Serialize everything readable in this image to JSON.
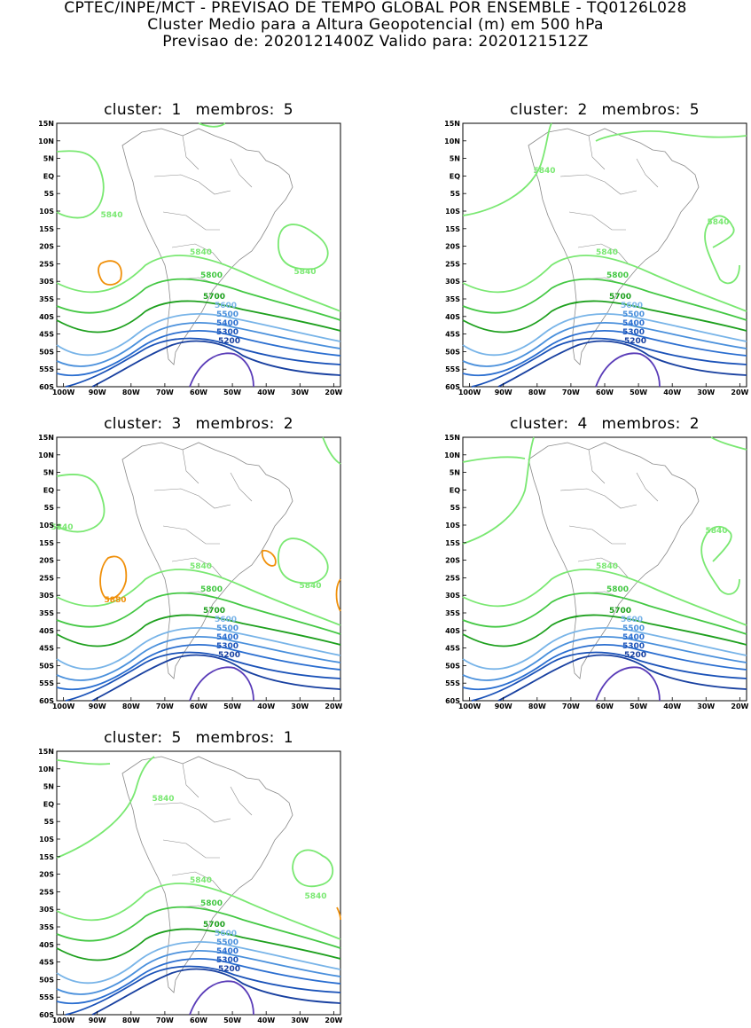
{
  "header": {
    "line1": "CPTEC/INPE/MCT - PREVISAO DE TEMPO GLOBAL POR ENSEMBLE - TQ0126L028",
    "line2": "Cluster Medio para a Altura Geopotencial (m) em 500 hPa",
    "line3": "Previsao de: 2020121400Z    Valido para: 2020121512Z"
  },
  "axes": {
    "lat_labels": [
      "15N",
      "10N",
      "5N",
      "EQ",
      "5S",
      "10S",
      "15S",
      "20S",
      "25S",
      "30S",
      "35S",
      "40S",
      "45S",
      "50S",
      "55S",
      "60S"
    ],
    "lon_labels": [
      "100W",
      "90W",
      "80W",
      "70W",
      "60W",
      "50W",
      "40W",
      "30W",
      "20W"
    ]
  },
  "colors": {
    "c5880": "#f0900a",
    "c5840": "#7ae872",
    "c5800": "#44c844",
    "c5700": "#1ea01e",
    "c5600": "#78b4e8",
    "c5500": "#4a90dc",
    "c5400": "#2a6ed0",
    "c5300": "#1a52b8",
    "c5200": "#1840a0",
    "c5100": "#5a3cb8",
    "coast": "#8a8a8a"
  },
  "panels": [
    {
      "cluster_label": "cluster:",
      "cluster": "1",
      "members_label": "membros:",
      "members": "5"
    },
    {
      "cluster_label": "cluster:",
      "cluster": "2",
      "members_label": "membros:",
      "members": "5"
    },
    {
      "cluster_label": "cluster:",
      "cluster": "3",
      "members_label": "membros:",
      "members": "2"
    },
    {
      "cluster_label": "cluster:",
      "cluster": "4",
      "members_label": "membros:",
      "members": "2"
    },
    {
      "cluster_label": "cluster:",
      "cluster": "5",
      "members_label": "membros:",
      "members": "1"
    }
  ],
  "contour_labels": {
    "c5880": "5880",
    "c5840": "5840",
    "c5800": "5800",
    "c5700": "5700",
    "c5600": "5600",
    "c5500": "5500",
    "c5400": "5400",
    "c5300": "5300",
    "c5200": "5200"
  }
}
